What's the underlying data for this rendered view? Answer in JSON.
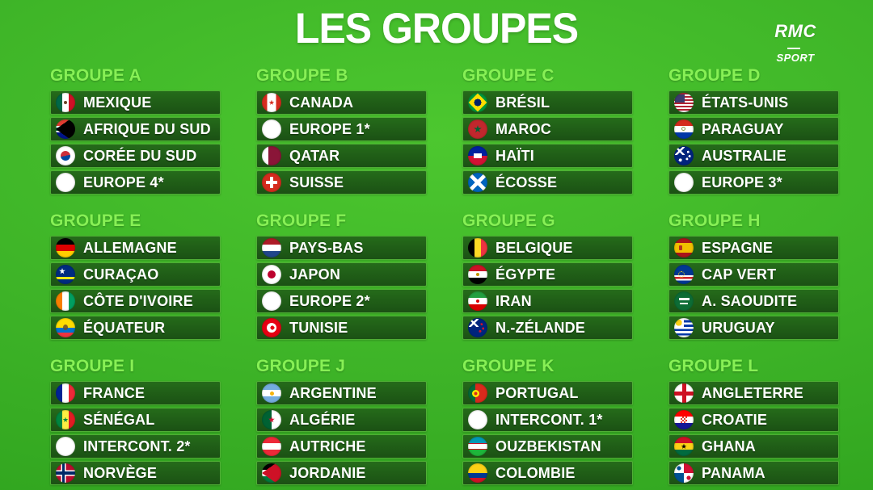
{
  "title": "LES GROUPES",
  "brand": {
    "line1": "RMC",
    "line2": "SPORT"
  },
  "colors": {
    "bg_center": "#4cc72f",
    "bg_edge": "#2fa31e",
    "bar_fill_top": "#256b1a",
    "bar_fill_bottom": "#1b5114",
    "bar_border": "#4fae35",
    "header_text": "#87f055",
    "team_text": "#ffffff",
    "title_text": "#ffffff"
  },
  "groups": [
    {
      "name": "GROUPE A",
      "teams": [
        {
          "label": "MEXIQUE",
          "flag": "mexique"
        },
        {
          "label": "AFRIQUE DU SUD",
          "flag": "afrique-du-sud"
        },
        {
          "label": "CORÉE DU SUD",
          "flag": "coree-du-sud"
        },
        {
          "label": "EUROPE 4*",
          "flag": "europe"
        }
      ]
    },
    {
      "name": "GROUPE B",
      "teams": [
        {
          "label": "CANADA",
          "flag": "canada"
        },
        {
          "label": "EUROPE 1*",
          "flag": "europe"
        },
        {
          "label": "QATAR",
          "flag": "qatar"
        },
        {
          "label": "SUISSE",
          "flag": "suisse"
        }
      ]
    },
    {
      "name": "GROUPE C",
      "teams": [
        {
          "label": "BRÉSIL",
          "flag": "bresil"
        },
        {
          "label": "MAROC",
          "flag": "maroc"
        },
        {
          "label": "HAÏTI",
          "flag": "haiti"
        },
        {
          "label": "ÉCOSSE",
          "flag": "ecosse"
        }
      ]
    },
    {
      "name": "GROUPE D",
      "teams": [
        {
          "label": "ÉTATS-UNIS",
          "flag": "etats-unis"
        },
        {
          "label": "PARAGUAY",
          "flag": "paraguay"
        },
        {
          "label": "AUSTRALIE",
          "flag": "australie"
        },
        {
          "label": "EUROPE 3*",
          "flag": "europe"
        }
      ]
    },
    {
      "name": "GROUPE E",
      "teams": [
        {
          "label": "ALLEMAGNE",
          "flag": "allemagne"
        },
        {
          "label": "CURAÇAO",
          "flag": "curacao"
        },
        {
          "label": "CÔTE D'IVOIRE",
          "flag": "cote-divoire"
        },
        {
          "label": "ÉQUATEUR",
          "flag": "equateur"
        }
      ]
    },
    {
      "name": "GROUPE F",
      "teams": [
        {
          "label": "PAYS-BAS",
          "flag": "pays-bas"
        },
        {
          "label": "JAPON",
          "flag": "japon"
        },
        {
          "label": "EUROPE 2*",
          "flag": "europe"
        },
        {
          "label": "TUNISIE",
          "flag": "tunisie"
        }
      ]
    },
    {
      "name": "GROUPE G",
      "teams": [
        {
          "label": "BELGIQUE",
          "flag": "belgique"
        },
        {
          "label": "ÉGYPTE",
          "flag": "egypte"
        },
        {
          "label": "IRAN",
          "flag": "iran"
        },
        {
          "label": "N.-ZÉLANDE",
          "flag": "nouvelle-zelande"
        }
      ]
    },
    {
      "name": "GROUPE H",
      "teams": [
        {
          "label": "ESPAGNE",
          "flag": "espagne"
        },
        {
          "label": "CAP VERT",
          "flag": "cap-vert"
        },
        {
          "label": "A. SAOUDITE",
          "flag": "arabie-saoudite"
        },
        {
          "label": "URUGUAY",
          "flag": "uruguay"
        }
      ]
    },
    {
      "name": "GROUPE I",
      "teams": [
        {
          "label": "FRANCE",
          "flag": "france"
        },
        {
          "label": "SÉNÉGAL",
          "flag": "senegal"
        },
        {
          "label": "INTERCONT. 2*",
          "flag": "intercont"
        },
        {
          "label": "NORVÈGE",
          "flag": "norvege"
        }
      ]
    },
    {
      "name": "GROUPE J",
      "teams": [
        {
          "label": "ARGENTINE",
          "flag": "argentine"
        },
        {
          "label": "ALGÉRIE",
          "flag": "algerie"
        },
        {
          "label": "AUTRICHE",
          "flag": "autriche"
        },
        {
          "label": "JORDANIE",
          "flag": "jordanie"
        }
      ]
    },
    {
      "name": "GROUPE K",
      "teams": [
        {
          "label": "PORTUGAL",
          "flag": "portugal"
        },
        {
          "label": "INTERCONT. 1*",
          "flag": "intercont"
        },
        {
          "label": "OUZBEKISTAN",
          "flag": "ouzbekistan"
        },
        {
          "label": "COLOMBIE",
          "flag": "colombie"
        }
      ]
    },
    {
      "name": "GROUPE L",
      "teams": [
        {
          "label": "ANGLETERRE",
          "flag": "angleterre"
        },
        {
          "label": "CROATIE",
          "flag": "croatie"
        },
        {
          "label": "GHANA",
          "flag": "ghana"
        },
        {
          "label": "PANAMA",
          "flag": "panama"
        }
      ]
    }
  ]
}
